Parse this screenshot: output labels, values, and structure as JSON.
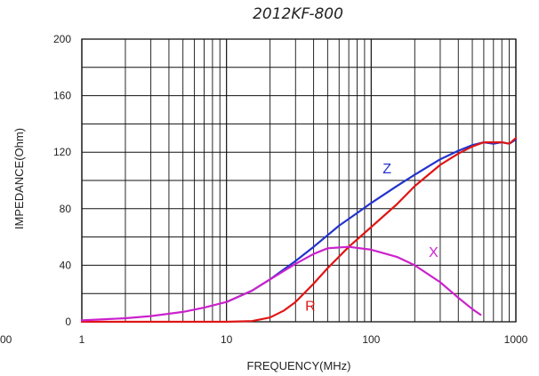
{
  "chart_data": {
    "type": "line",
    "title": "2012KF-800",
    "xlabel": "FREQUENCY(MHz)",
    "ylabel": "IMPEDANCE(Ohm)",
    "x_scale": "log",
    "xlim": [
      1,
      1000
    ],
    "ylim": [
      0,
      200
    ],
    "x_ticks": [
      "1",
      "10",
      "100",
      "1000"
    ],
    "y_ticks": [
      "0",
      "40",
      "80",
      "120",
      "160",
      "200"
    ],
    "stray_tick_label": "00",
    "grid": true,
    "series": [
      {
        "name": "Z",
        "color": "#2233cc",
        "x": [
          10,
          15,
          20,
          30,
          40,
          60,
          80,
          100,
          150,
          200,
          300,
          400,
          500,
          600,
          700,
          800,
          900,
          1000
        ],
        "y": [
          14,
          22,
          30,
          43,
          53,
          68,
          77,
          84,
          96,
          104,
          115,
          121,
          125,
          127,
          126,
          127,
          126,
          129
        ]
      },
      {
        "name": "R",
        "color": "#e01515",
        "x": [
          1,
          5,
          10,
          15,
          20,
          25,
          30,
          40,
          50,
          70,
          100,
          150,
          200,
          300,
          400,
          500,
          600,
          700,
          800,
          900,
          1000
        ],
        "y": [
          0,
          0,
          0,
          0.5,
          3,
          8,
          14,
          27,
          38,
          53,
          67,
          83,
          96,
          111,
          119,
          124,
          127,
          127,
          127,
          126,
          130
        ]
      },
      {
        "name": "X",
        "color": "#cc22cc",
        "x": [
          1,
          2,
          3,
          5,
          7,
          10,
          15,
          20,
          30,
          40,
          50,
          70,
          100,
          150,
          200,
          300,
          400,
          500,
          570
        ],
        "y": [
          1,
          2.5,
          4,
          7,
          10,
          14,
          22,
          30,
          41,
          48,
          52,
          53,
          51,
          46,
          40,
          28,
          17,
          9,
          5
        ]
      }
    ],
    "series_labels": [
      {
        "text": "Z",
        "x": 120,
        "y": 105
      },
      {
        "text": "R",
        "x": 35,
        "y": 8
      },
      {
        "text": "X",
        "x": 250,
        "y": 46
      }
    ]
  }
}
